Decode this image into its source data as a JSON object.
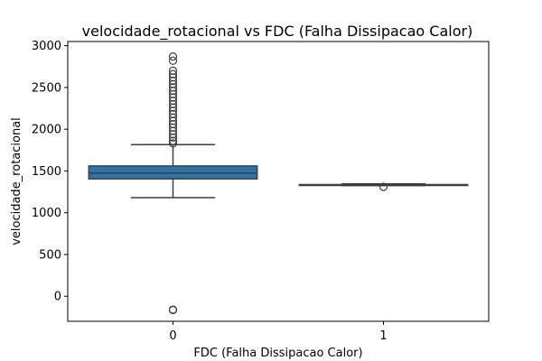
{
  "chart_data": {
    "type": "boxplot",
    "title": "velocidade_rotacional vs FDC (Falha Dissipacao Calor)",
    "xlabel": "FDC (Falha Dissipacao Calor)",
    "ylabel": "velocidade_rotacional",
    "categories": [
      "0",
      "1"
    ],
    "ylim": [
      -300,
      3050
    ],
    "yticks": [
      0,
      500,
      1000,
      1500,
      2000,
      2500,
      3000
    ],
    "ytick_labels": [
      "0",
      "500",
      "1000",
      "1500",
      "2000",
      "2500",
      "3000"
    ],
    "grid": false,
    "box_color": "#2e73ab",
    "box_color_1": "#2e73ab",
    "boxes": [
      {
        "category": "0",
        "whisker_low": 1180,
        "q1": 1405,
        "median": 1475,
        "q3": 1560,
        "whisker_high": 1815,
        "outliers_high": [
          1830,
          1860,
          1900,
          1940,
          1980,
          2020,
          2060,
          2100,
          2140,
          2180,
          2220,
          2260,
          2300,
          2340,
          2380,
          2420,
          2460,
          2500,
          2540,
          2580,
          2620,
          2660,
          2700,
          2820,
          2870
        ],
        "outliers_low": [
          -160,
          -165
        ]
      },
      {
        "category": "1",
        "whisker_low": 1325,
        "q1": 1330,
        "median": 1333,
        "q3": 1337,
        "whisker_high": 1345,
        "outliers_high": [],
        "outliers_low": [
          1310
        ]
      }
    ]
  }
}
